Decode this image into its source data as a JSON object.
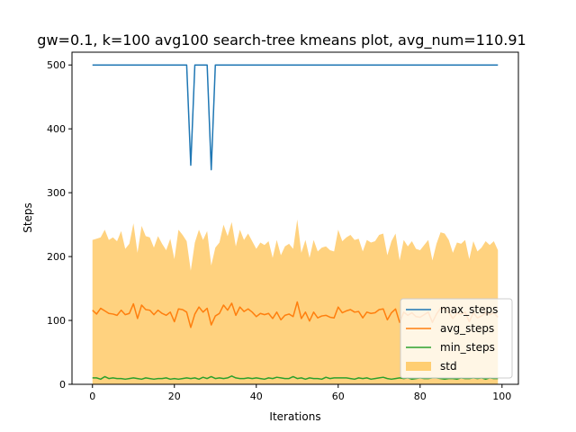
{
  "chart_data": {
    "type": "line",
    "title": "gw=0.1, k=100 avg100 search-tree kmeans plot, avg_num=110.91",
    "xlabel": "Iterations",
    "ylabel": "Steps",
    "xlim": [
      -5,
      104
    ],
    "ylim": [
      0,
      520
    ],
    "xticks": [
      0,
      20,
      40,
      60,
      80,
      100
    ],
    "yticks": [
      0,
      100,
      200,
      300,
      400,
      500
    ],
    "grid": false,
    "legend_position": "lower-right",
    "x": [
      0,
      1,
      2,
      3,
      4,
      5,
      6,
      7,
      8,
      9,
      10,
      11,
      12,
      13,
      14,
      15,
      16,
      17,
      18,
      19,
      20,
      21,
      22,
      23,
      24,
      25,
      26,
      27,
      28,
      29,
      30,
      31,
      32,
      33,
      34,
      35,
      36,
      37,
      38,
      39,
      40,
      41,
      42,
      43,
      44,
      45,
      46,
      47,
      48,
      49,
      50,
      51,
      52,
      53,
      54,
      55,
      56,
      57,
      58,
      59,
      60,
      61,
      62,
      63,
      64,
      65,
      66,
      67,
      68,
      69,
      70,
      71,
      72,
      73,
      74,
      75,
      76,
      77,
      78,
      79,
      80,
      81,
      82,
      83,
      84,
      85,
      86,
      87,
      88,
      89,
      90,
      91,
      92,
      93,
      94,
      95,
      96,
      97,
      98,
      99
    ],
    "series": [
      {
        "name": "max_steps",
        "color": "#1f77b4",
        "values": [
          500,
          500,
          500,
          500,
          500,
          500,
          500,
          500,
          500,
          500,
          500,
          500,
          500,
          500,
          500,
          500,
          500,
          500,
          500,
          500,
          500,
          500,
          500,
          500,
          343,
          500,
          500,
          500,
          500,
          336,
          500,
          500,
          500,
          500,
          500,
          500,
          500,
          500,
          500,
          500,
          500,
          500,
          500,
          500,
          500,
          500,
          500,
          500,
          500,
          500,
          500,
          500,
          500,
          500,
          500,
          500,
          500,
          500,
          500,
          500,
          500,
          500,
          500,
          500,
          500,
          500,
          500,
          500,
          500,
          500,
          500,
          500,
          500,
          500,
          500,
          500,
          500,
          500,
          500,
          500,
          500,
          500,
          500,
          500,
          500,
          500,
          500,
          500,
          500,
          500,
          500,
          500,
          500,
          500,
          500,
          500,
          500,
          500,
          500,
          500
        ]
      },
      {
        "name": "avg_steps",
        "color": "#ff7f0e",
        "values": [
          116,
          110,
          119,
          115,
          111,
          110,
          108,
          116,
          109,
          111,
          126,
          103,
          124,
          117,
          116,
          109,
          116,
          111,
          108,
          113,
          98,
          118,
          117,
          113,
          89,
          110,
          121,
          113,
          119,
          93,
          107,
          111,
          124,
          116,
          127,
          108,
          121,
          114,
          118,
          113,
          106,
          111,
          109,
          111,
          103,
          113,
          101,
          108,
          110,
          106,
          129,
          103,
          113,
          99,
          113,
          104,
          107,
          108,
          105,
          104,
          121,
          112,
          115,
          117,
          113,
          114,
          104,
          113,
          111,
          112,
          117,
          118,
          101,
          112,
          118,
          97,
          113,
          108,
          112,
          106,
          105,
          109,
          113,
          97,
          110,
          119,
          118,
          113,
          103,
          111,
          110,
          113,
          98,
          112,
          104,
          107,
          112,
          109,
          112,
          105
        ]
      },
      {
        "name": "min_steps",
        "color": "#2ca02c",
        "values": [
          10,
          10,
          8,
          12,
          9,
          10,
          9,
          9,
          8,
          9,
          10,
          9,
          8,
          10,
          9,
          8,
          9,
          9,
          10,
          8,
          9,
          8,
          9,
          10,
          9,
          10,
          8,
          11,
          9,
          12,
          9,
          10,
          9,
          10,
          13,
          10,
          9,
          9,
          10,
          9,
          10,
          9,
          8,
          10,
          9,
          11,
          10,
          9,
          9,
          12,
          9,
          10,
          8,
          10,
          9,
          9,
          8,
          11,
          9,
          10,
          10,
          10,
          10,
          9,
          8,
          10,
          9,
          10,
          8,
          9,
          10,
          11,
          9,
          8,
          9,
          10,
          9,
          10,
          8,
          9,
          10,
          9,
          9,
          10,
          10,
          9,
          8,
          9,
          9,
          8,
          10,
          9,
          9,
          10,
          9,
          10,
          8,
          10,
          9,
          9
        ]
      }
    ],
    "std_band": {
      "name": "std",
      "color": "#ffa500",
      "alpha": 0.5,
      "upper": [
        226,
        228,
        230,
        242,
        226,
        230,
        224,
        240,
        212,
        220,
        252,
        206,
        248,
        232,
        230,
        214,
        232,
        220,
        210,
        228,
        196,
        242,
        234,
        224,
        178,
        222,
        242,
        226,
        240,
        186,
        214,
        222,
        250,
        232,
        254,
        216,
        242,
        226,
        236,
        224,
        212,
        222,
        218,
        224,
        198,
        226,
        202,
        216,
        220,
        212,
        258,
        206,
        226,
        198,
        226,
        208,
        214,
        216,
        210,
        208,
        242,
        224,
        230,
        234,
        226,
        228,
        208,
        226,
        222,
        224,
        234,
        236,
        202,
        224,
        236,
        194,
        226,
        216,
        224,
        212,
        210,
        218,
        226,
        194,
        220,
        238,
        236,
        226,
        206,
        222,
        220,
        226,
        196,
        224,
        208,
        214,
        224,
        218,
        224,
        210
      ],
      "lower": [
        0,
        0,
        0,
        0,
        0,
        0,
        0,
        0,
        0,
        0,
        0,
        0,
        0,
        0,
        0,
        0,
        0,
        0,
        0,
        0,
        0,
        0,
        0,
        0,
        0,
        0,
        0,
        0,
        0,
        0,
        0,
        0,
        0,
        0,
        0,
        0,
        0,
        0,
        0,
        0,
        0,
        0,
        0,
        0,
        0,
        0,
        0,
        0,
        0,
        0,
        0,
        0,
        0,
        0,
        0,
        0,
        0,
        0,
        0,
        0,
        0,
        0,
        0,
        0,
        0,
        0,
        0,
        0,
        0,
        0,
        0,
        0,
        0,
        0,
        0,
        0,
        0,
        0,
        0,
        0,
        0,
        0,
        0,
        0,
        0,
        0,
        0,
        0,
        0,
        0,
        0,
        0,
        0,
        0,
        0,
        0,
        0,
        0,
        0,
        0
      ]
    }
  }
}
